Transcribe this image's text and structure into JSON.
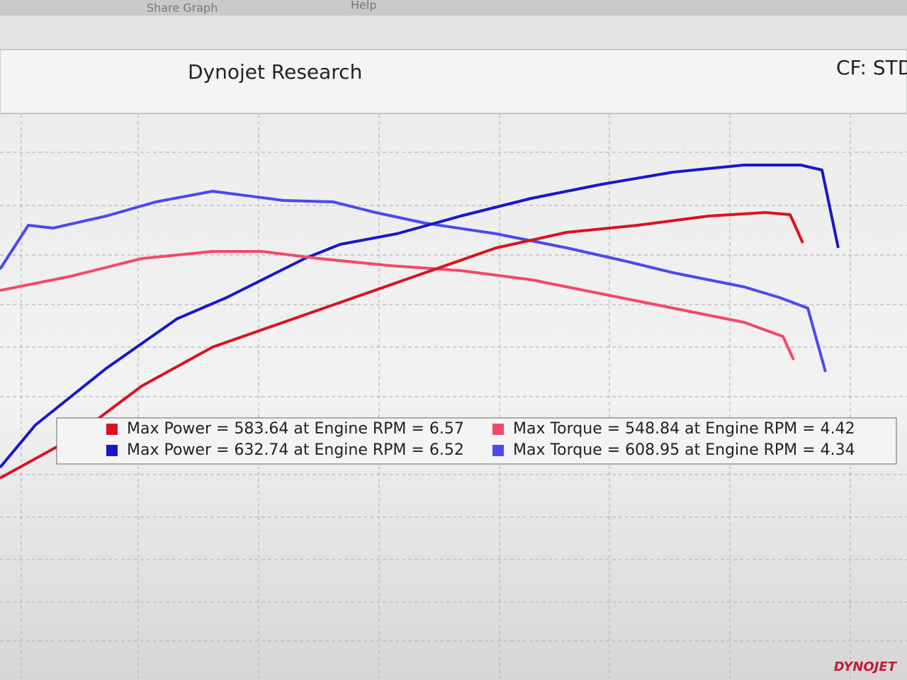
{
  "toolbar": {
    "items": [
      "Share Graph",
      "Help"
    ]
  },
  "header": {
    "title": "Dynojet Research",
    "correction": "CF: STD"
  },
  "legend": {
    "entries": [
      {
        "text": "Max Power = 583.64 at Engine RPM = 6.57",
        "color": "#d81420"
      },
      {
        "text": "Max Torque = 548.84 at Engine RPM = 4.42",
        "color": "#f04a66"
      },
      {
        "text": "Max Power = 632.74 at Engine RPM = 6.52",
        "color": "#1818c8"
      },
      {
        "text": "Max Torque = 608.95 at Engine RPM = 4.34",
        "color": "#4a4af0"
      }
    ]
  },
  "logo": "DYNOJET"
}
